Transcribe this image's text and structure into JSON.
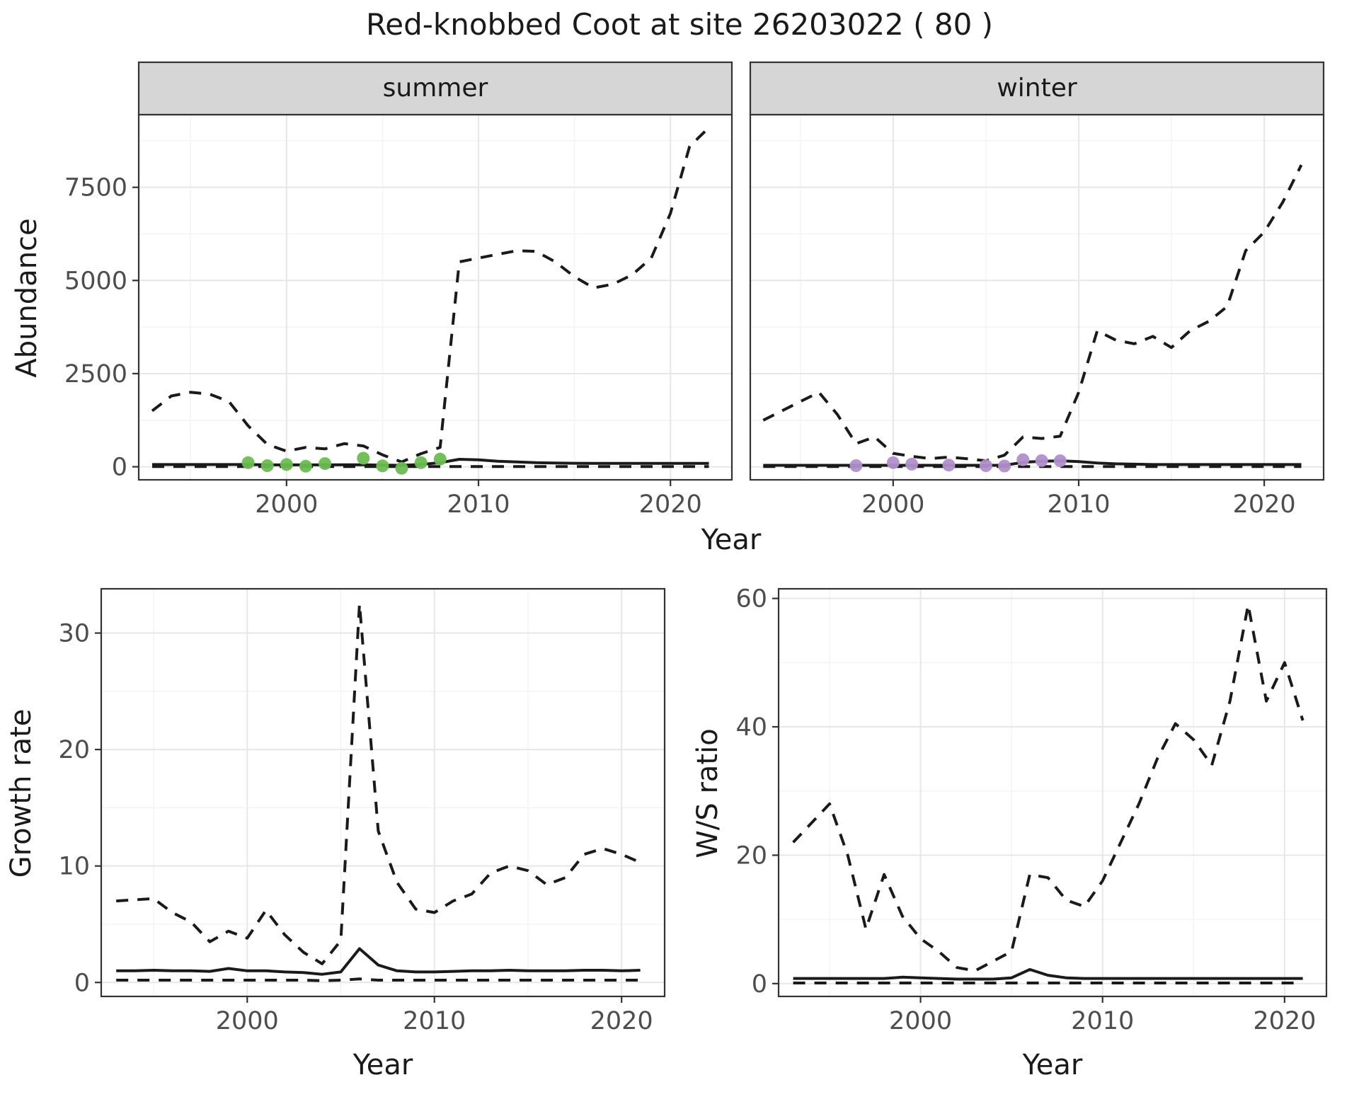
{
  "title": "Red-knobbed Coot at site 26203022 ( 80 )",
  "labels": {
    "abundance": "Abundance",
    "growth": "Growth rate",
    "ws": "W/S ratio",
    "year": "Year"
  },
  "colors": {
    "line": "#1a1a1a",
    "summer_points": "#6abc52",
    "winter_points": "#b18fcb",
    "strip_bg": "#d6d6d6",
    "panel_border": "#333333",
    "grid_major": "#e7e7e7",
    "grid_minor": "#f3f3f3",
    "tick_text": "#4d4d4d"
  },
  "chart_data": [
    {
      "id": "abundance-summer",
      "type": "line",
      "facet": "summer",
      "xlabel": "Year",
      "ylabel": "Abundance",
      "xlim": [
        1992.3,
        2023.2
      ],
      "ylim": [
        -350,
        9450
      ],
      "xticks": [
        2000,
        2010,
        2020
      ],
      "yticks": [
        0,
        2500,
        5000,
        7500
      ],
      "yaxis": true,
      "series": [
        {
          "name": "upper_ci",
          "style": "dashed",
          "x": [
            1993,
            1994,
            1995,
            1996,
            1997,
            1998,
            1999,
            2000,
            2001,
            2002,
            2003,
            2004,
            2005,
            2006,
            2007,
            2008,
            2009,
            2010,
            2011,
            2012,
            2013,
            2014,
            2015,
            2016,
            2017,
            2018,
            2019,
            2020,
            2021,
            2022
          ],
          "y": [
            1500,
            1900,
            2000,
            1950,
            1750,
            1100,
            600,
            420,
            520,
            480,
            620,
            560,
            320,
            130,
            350,
            520,
            5500,
            5600,
            5700,
            5800,
            5780,
            5500,
            5100,
            4800,
            4900,
            5150,
            5600,
            6800,
            8600,
            9100
          ]
        },
        {
          "name": "mean",
          "style": "solid",
          "x": [
            1993,
            1994,
            1995,
            1996,
            1997,
            1998,
            1999,
            2000,
            2001,
            2002,
            2003,
            2004,
            2005,
            2006,
            2007,
            2008,
            2009,
            2010,
            2011,
            2012,
            2013,
            2014,
            2015,
            2016,
            2017,
            2018,
            2019,
            2020,
            2021,
            2022
          ],
          "y": [
            60,
            60,
            60,
            60,
            60,
            60,
            50,
            50,
            50,
            50,
            55,
            55,
            45,
            40,
            60,
            110,
            200,
            185,
            150,
            130,
            110,
            100,
            95,
            90,
            90,
            90,
            90,
            90,
            90,
            90
          ]
        },
        {
          "name": "lower_ci",
          "style": "dashed",
          "x": [
            1993,
            1994,
            1995,
            1996,
            1997,
            1998,
            1999,
            2000,
            2001,
            2002,
            2003,
            2004,
            2005,
            2006,
            2007,
            2008,
            2009,
            2010,
            2011,
            2012,
            2013,
            2014,
            2015,
            2016,
            2017,
            2018,
            2019,
            2020,
            2021,
            2022
          ],
          "y": [
            5,
            5,
            5,
            5,
            5,
            5,
            5,
            5,
            5,
            5,
            5,
            5,
            5,
            5,
            5,
            5,
            5,
            5,
            5,
            5,
            5,
            5,
            5,
            5,
            5,
            5,
            5,
            5,
            5,
            5
          ]
        },
        {
          "name": "observed_counts",
          "style": "points",
          "color": "#6abc52",
          "x": [
            1998,
            1999,
            2000,
            2001,
            2002,
            2004,
            2005,
            2006,
            2007,
            2008
          ],
          "y": [
            110,
            30,
            60,
            15,
            85,
            230,
            25,
            -40,
            110,
            205
          ]
        }
      ]
    },
    {
      "id": "abundance-winter",
      "type": "line",
      "facet": "winter",
      "xlabel": "Year",
      "ylabel": "Abundance",
      "xlim": [
        1992.3,
        2023.2
      ],
      "ylim": [
        -350,
        9450
      ],
      "xticks": [
        2000,
        2010,
        2020
      ],
      "yticks": [
        0,
        2500,
        5000,
        7500
      ],
      "yaxis": false,
      "series": [
        {
          "name": "upper_ci",
          "style": "dashed",
          "x": [
            1993,
            1994,
            1995,
            1996,
            1997,
            1998,
            1999,
            2000,
            2001,
            2002,
            2003,
            2004,
            2005,
            2006,
            2007,
            2008,
            2009,
            2010,
            2011,
            2012,
            2013,
            2014,
            2015,
            2016,
            2017,
            2018,
            2019,
            2020,
            2021,
            2022
          ],
          "y": [
            1250,
            1500,
            1750,
            2000,
            1400,
            620,
            800,
            360,
            280,
            220,
            260,
            215,
            160,
            310,
            800,
            760,
            820,
            2000,
            3650,
            3400,
            3300,
            3500,
            3200,
            3650,
            3900,
            4300,
            5800,
            6300,
            7100,
            8100
          ]
        },
        {
          "name": "mean",
          "style": "solid",
          "x": [
            1993,
            1994,
            1995,
            1996,
            1997,
            1998,
            1999,
            2000,
            2001,
            2002,
            2003,
            2004,
            2005,
            2006,
            2007,
            2008,
            2009,
            2010,
            2011,
            2012,
            2013,
            2014,
            2015,
            2016,
            2017,
            2018,
            2019,
            2020,
            2021,
            2022
          ],
          "y": [
            40,
            40,
            40,
            40,
            40,
            40,
            40,
            40,
            40,
            40,
            40,
            40,
            40,
            40,
            120,
            150,
            160,
            140,
            100,
            80,
            70,
            60,
            60,
            60,
            60,
            60,
            60,
            60,
            60,
            60
          ]
        },
        {
          "name": "lower_ci",
          "style": "dashed",
          "x": [
            1993,
            1994,
            1995,
            1996,
            1997,
            1998,
            1999,
            2000,
            2001,
            2002,
            2003,
            2004,
            2005,
            2006,
            2007,
            2008,
            2009,
            2010,
            2011,
            2012,
            2013,
            2014,
            2015,
            2016,
            2017,
            2018,
            2019,
            2020,
            2021,
            2022
          ],
          "y": [
            5,
            5,
            5,
            5,
            5,
            5,
            5,
            5,
            5,
            5,
            5,
            5,
            5,
            5,
            5,
            5,
            5,
            5,
            5,
            5,
            5,
            5,
            5,
            5,
            5,
            5,
            5,
            5,
            5,
            5
          ]
        },
        {
          "name": "observed_counts",
          "style": "points",
          "color": "#b18fcb",
          "x": [
            1998,
            2000,
            2001,
            2003,
            2005,
            2006,
            2007,
            2008,
            2009
          ],
          "y": [
            30,
            110,
            70,
            45,
            30,
            20,
            190,
            165,
            160
          ]
        }
      ]
    },
    {
      "id": "growth-rate",
      "type": "line",
      "facet": null,
      "xlabel": "Year",
      "ylabel": "Growth rate",
      "xlim": [
        1992.2,
        2022.3
      ],
      "ylim": [
        -1.2,
        33.8
      ],
      "xticks": [
        2000,
        2010,
        2020
      ],
      "yticks": [
        0,
        10,
        20,
        30
      ],
      "yaxis": true,
      "series": [
        {
          "name": "upper_ci",
          "style": "dashed",
          "x": [
            1993,
            1994,
            1995,
            1996,
            1997,
            1998,
            1999,
            2000,
            2001,
            2002,
            2003,
            2004,
            2005,
            2006,
            2007,
            2008,
            2009,
            2010,
            2011,
            2012,
            2013,
            2014,
            2015,
            2016,
            2017,
            2018,
            2019,
            2020,
            2021
          ],
          "y": [
            7.0,
            7.1,
            7.2,
            6.0,
            5.2,
            3.5,
            4.4,
            3.8,
            6.2,
            4.1,
            2.6,
            1.6,
            3.6,
            32.5,
            13.0,
            8.6,
            6.3,
            6.0,
            7.0,
            7.6,
            9.4,
            10.0,
            9.6,
            8.4,
            9.0,
            11.0,
            11.5,
            11.0,
            10.3
          ]
        },
        {
          "name": "mean",
          "style": "solid",
          "x": [
            1993,
            1994,
            1995,
            1996,
            1997,
            1998,
            1999,
            2000,
            2001,
            2002,
            2003,
            2004,
            2005,
            2006,
            2007,
            2008,
            2009,
            2010,
            2011,
            2012,
            2013,
            2014,
            2015,
            2016,
            2017,
            2018,
            2019,
            2020,
            2021
          ],
          "y": [
            1.0,
            1.0,
            1.05,
            1.0,
            1.0,
            0.95,
            1.2,
            1.0,
            1.0,
            0.9,
            0.85,
            0.7,
            0.9,
            2.9,
            1.5,
            1.0,
            0.9,
            0.9,
            0.95,
            1.0,
            1.0,
            1.05,
            1.0,
            1.0,
            1.0,
            1.05,
            1.05,
            1.0,
            1.05
          ]
        },
        {
          "name": "lower_ci",
          "style": "dashed",
          "x": [
            1993,
            1994,
            1995,
            1996,
            1997,
            1998,
            1999,
            2000,
            2001,
            2002,
            2003,
            2004,
            2005,
            2006,
            2007,
            2008,
            2009,
            2010,
            2011,
            2012,
            2013,
            2014,
            2015,
            2016,
            2017,
            2018,
            2019,
            2020,
            2021
          ],
          "y": [
            0.2,
            0.2,
            0.2,
            0.2,
            0.2,
            0.2,
            0.2,
            0.2,
            0.2,
            0.2,
            0.2,
            0.15,
            0.2,
            0.3,
            0.2,
            0.2,
            0.2,
            0.2,
            0.2,
            0.2,
            0.2,
            0.2,
            0.2,
            0.2,
            0.2,
            0.2,
            0.2,
            0.2,
            0.2
          ]
        }
      ]
    },
    {
      "id": "ws-ratio",
      "type": "line",
      "facet": null,
      "xlabel": "Year",
      "ylabel": "W/S ratio",
      "xlim": [
        1992.2,
        2022.3
      ],
      "ylim": [
        -2,
        61.5
      ],
      "xticks": [
        2000,
        2010,
        2020
      ],
      "yticks": [
        0,
        20,
        40,
        60
      ],
      "yaxis": true,
      "series": [
        {
          "name": "upper_ci",
          "style": "dashed",
          "x": [
            1993,
            1994,
            1995,
            1996,
            1997,
            1998,
            1999,
            2000,
            2001,
            2002,
            2003,
            2004,
            2005,
            2006,
            2007,
            2008,
            2009,
            2010,
            2011,
            2012,
            2013,
            2014,
            2015,
            2016,
            2017,
            2018,
            2019,
            2020,
            2021
          ],
          "y": [
            22,
            25,
            28,
            20,
            8.5,
            17,
            10.5,
            7,
            5,
            2.5,
            2,
            3.5,
            5,
            17,
            16.5,
            13,
            12,
            16,
            22,
            28,
            35,
            40.5,
            38,
            34,
            44,
            59,
            44,
            50,
            41
          ]
        },
        {
          "name": "mean",
          "style": "solid",
          "x": [
            1993,
            1994,
            1995,
            1996,
            1997,
            1998,
            1999,
            2000,
            2001,
            2002,
            2003,
            2004,
            2005,
            2006,
            2007,
            2008,
            2009,
            2010,
            2011,
            2012,
            2013,
            2014,
            2015,
            2016,
            2017,
            2018,
            2019,
            2020,
            2021
          ],
          "y": [
            0.8,
            0.8,
            0.8,
            0.8,
            0.8,
            0.8,
            1.0,
            0.9,
            0.8,
            0.7,
            0.7,
            0.7,
            0.9,
            2.2,
            1.3,
            0.9,
            0.8,
            0.8,
            0.8,
            0.8,
            0.8,
            0.8,
            0.8,
            0.8,
            0.8,
            0.8,
            0.8,
            0.8,
            0.8
          ]
        },
        {
          "name": "lower_ci",
          "style": "dashed",
          "x": [
            1993,
            1994,
            1995,
            1996,
            1997,
            1998,
            1999,
            2000,
            2001,
            2002,
            2003,
            2004,
            2005,
            2006,
            2007,
            2008,
            2009,
            2010,
            2011,
            2012,
            2013,
            2014,
            2015,
            2016,
            2017,
            2018,
            2019,
            2020,
            2021
          ],
          "y": [
            0.1,
            0.1,
            0.1,
            0.1,
            0.1,
            0.1,
            0.1,
            0.1,
            0.1,
            0.1,
            0.1,
            0.1,
            0.1,
            0.1,
            0.1,
            0.1,
            0.1,
            0.1,
            0.1,
            0.1,
            0.1,
            0.1,
            0.1,
            0.1,
            0.1,
            0.1,
            0.1,
            0.1,
            0.1
          ]
        }
      ]
    }
  ]
}
